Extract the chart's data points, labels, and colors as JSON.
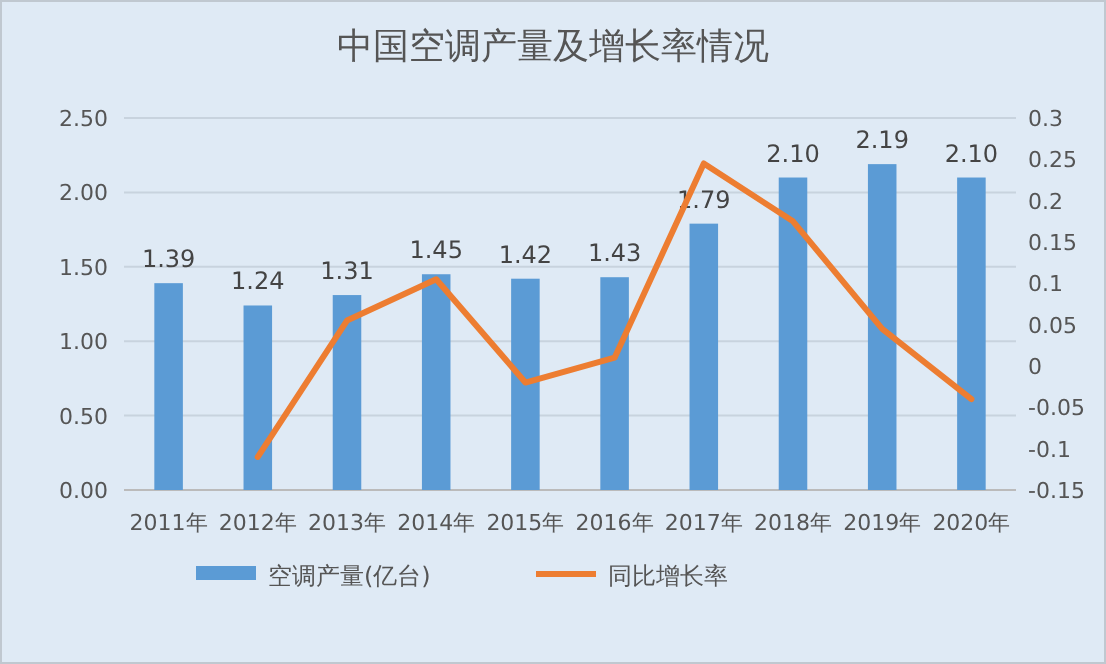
{
  "chart_data": {
    "type": "bar",
    "title": "中国空调产量及增长率情况",
    "categories": [
      "2011年",
      "2012年",
      "2013年",
      "2014年",
      "2015年",
      "2016年",
      "2017年",
      "2018年",
      "2019年",
      "2020年"
    ],
    "series": [
      {
        "name": "空调产量(亿台)",
        "color": "#5b9bd5",
        "values": [
          1.39,
          1.24,
          1.31,
          1.45,
          1.42,
          1.43,
          1.79,
          2.1,
          2.19,
          2.1
        ],
        "value_labels": [
          "1.39",
          "1.24",
          "1.31",
          "1.45",
          "1.42",
          "1.43",
          "1.79",
          "2.10",
          "2.19",
          "2.10"
        ]
      },
      {
        "name": "同比增长率",
        "type": "line",
        "axis": "y2",
        "color": "#ed7d31",
        "values": [
          null,
          -0.11,
          0.055,
          0.105,
          -0.02,
          0.01,
          0.245,
          0.175,
          0.045,
          -0.04
        ]
      }
    ],
    "ylim": [
      0,
      2.5
    ],
    "yticks": [
      {
        "value": 0,
        "label": "0.00"
      },
      {
        "value": 0.5,
        "label": "0.50"
      },
      {
        "value": 1,
        "label": "1.00"
      },
      {
        "value": 1.5,
        "label": "1.50"
      },
      {
        "value": 2,
        "label": "2.00"
      },
      {
        "value": 2.5,
        "label": "2.50"
      }
    ],
    "y2lim": [
      -0.15,
      0.3
    ],
    "y2ticks": [
      -0.15,
      -0.1,
      -0.05,
      0,
      0.05,
      0.1,
      0.15,
      0.2,
      0.25,
      0.3
    ],
    "grid": "y",
    "legend": "bottom"
  }
}
